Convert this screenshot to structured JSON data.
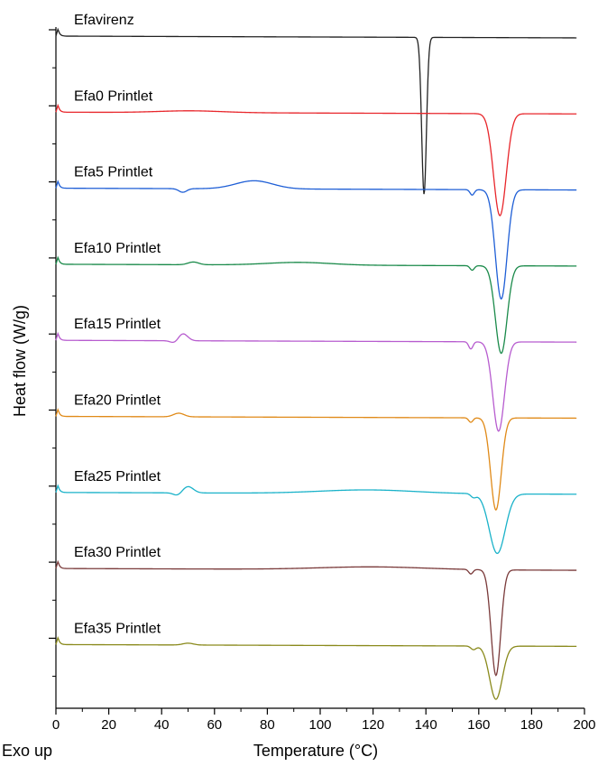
{
  "chart_data": {
    "type": "line",
    "title": "",
    "xlabel": "Temperature (°C)",
    "ylabel": "Heat flow (W/g)",
    "note": "Exo up",
    "xlim": [
      0,
      200
    ],
    "xticks": [
      0,
      20,
      40,
      60,
      80,
      100,
      120,
      140,
      160,
      180,
      200
    ],
    "grid": false,
    "legend": "none",
    "series": [
      {
        "name": "Efavirenz",
        "color": "#222222",
        "baseline": 1,
        "features": [
          {
            "x": 139.3,
            "depth": 174,
            "w": 0.9
          }
        ]
      },
      {
        "name": "Efa0 Printlet",
        "color": "#e8262b",
        "baseline": 2,
        "features": [
          {
            "x": 51,
            "depth": -2,
            "w": 12
          },
          {
            "x": 168,
            "depth": 113,
            "w": 2.4
          }
        ]
      },
      {
        "name": "Efa5 Printlet",
        "color": "#1f5fd6",
        "baseline": 3,
        "features": [
          {
            "x": 48,
            "depth": 4,
            "w": 1.5
          },
          {
            "x": 75,
            "depth": -9,
            "w": 7
          },
          {
            "x": 157.5,
            "depth": 6,
            "w": 0.8
          },
          {
            "x": 168.5,
            "depth": 121,
            "w": 2.2
          }
        ]
      },
      {
        "name": "Efa10 Printlet",
        "color": "#1a8a4a",
        "baseline": 4,
        "features": [
          {
            "x": 52,
            "depth": -3,
            "w": 2
          },
          {
            "x": 92,
            "depth": -3,
            "w": 12
          },
          {
            "x": 157.5,
            "depth": 5,
            "w": 0.8
          },
          {
            "x": 168.5,
            "depth": 97,
            "w": 2.2
          }
        ]
      },
      {
        "name": "Efa15 Printlet",
        "color": "#b75ccf",
        "baseline": 5,
        "features": [
          {
            "x": 45,
            "depth": 3,
            "w": 1.5
          },
          {
            "x": 48,
            "depth": -8,
            "w": 1.8
          },
          {
            "x": 157,
            "depth": 8,
            "w": 0.8
          },
          {
            "x": 167.5,
            "depth": 99,
            "w": 2.2
          }
        ]
      },
      {
        "name": "Efa20 Printlet",
        "color": "#e08a18",
        "baseline": 6,
        "features": [
          {
            "x": 46.5,
            "depth": -4,
            "w": 2
          },
          {
            "x": 157,
            "depth": 5,
            "w": 0.8
          },
          {
            "x": 166.5,
            "depth": 102,
            "w": 2
          }
        ]
      },
      {
        "name": "Efa25 Printlet",
        "color": "#1ab2c9",
        "baseline": 7,
        "features": [
          {
            "x": 46,
            "depth": 3,
            "w": 1.5
          },
          {
            "x": 50,
            "depth": -7,
            "w": 2
          },
          {
            "x": 118,
            "depth": -4,
            "w": 18
          },
          {
            "x": 158,
            "depth": 4,
            "w": 1
          },
          {
            "x": 167,
            "depth": 66,
            "w": 3
          }
        ]
      },
      {
        "name": "Efa30 Printlet",
        "color": "#7a3a3a",
        "baseline": 8,
        "features": [
          {
            "x": 120,
            "depth": -3,
            "w": 20
          },
          {
            "x": 157,
            "depth": 5,
            "w": 0.8
          },
          {
            "x": 166.5,
            "depth": 117,
            "w": 1.8
          }
        ]
      },
      {
        "name": "Efa35 Printlet",
        "color": "#8a8a1c",
        "baseline": 9,
        "features": [
          {
            "x": 50,
            "depth": -2,
            "w": 2
          },
          {
            "x": 158,
            "depth": 4,
            "w": 1
          },
          {
            "x": 166.5,
            "depth": 59,
            "w": 2.4
          }
        ]
      }
    ]
  }
}
